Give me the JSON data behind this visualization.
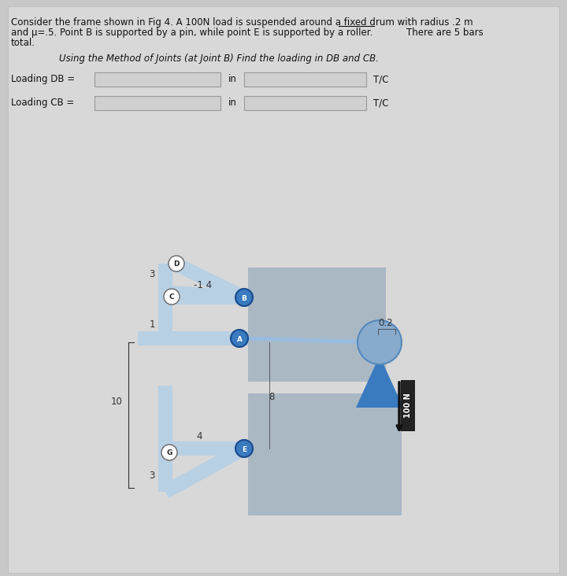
{
  "bg_color": "#c8c8c8",
  "panel_color": "#d8d8d8",
  "text_color": "#111111",
  "title_line1": "Consider the frame shown in Fig 4. A 100N load is suspended around a fixed drum with radius .2 m",
  "title_line2": "and μ=.5. Point B is supported by a pin, while point E is supported by a roller.",
  "title_line2b": "There are 5 bars",
  "title_line3": "total.",
  "subtitle": "Using the Method of Joints (at Joint B) Find the loading in DB and CB.",
  "label_db": "Loading DB =",
  "label_cb": "Loading CB =",
  "in_text": "in",
  "tc_text": "T/C",
  "bar_color": "#b8d0e4",
  "bar_color2": "#a8c4dc",
  "joint_color": "#3a7abf",
  "joint_border": "#1a4a8f",
  "box_color": "#aab8c4",
  "drum_fill": "#6699cc",
  "arrow_color": "#111111",
  "load_label": "100 N",
  "dim_color": "#333333",
  "input_box_color": "#d0d0d0",
  "input_border_color": "#999999"
}
